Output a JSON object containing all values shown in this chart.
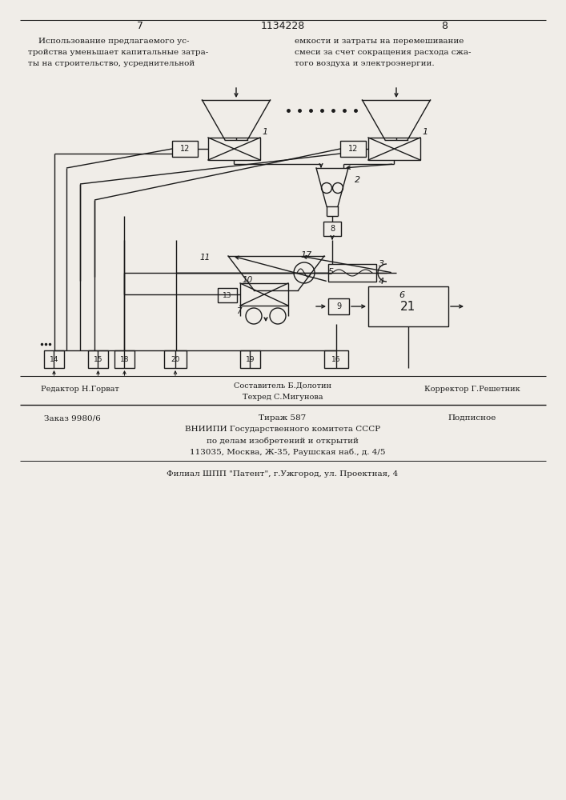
{
  "bg_color": "#f0ede8",
  "line_color": "#1a1a1a",
  "page_num_left": "7",
  "page_num_center": "1134228",
  "page_num_right": "8",
  "text_left_lines": [
    "    Использование предлагаемого ус-",
    "тройства уменьшает капитальные затра-",
    "ты на строительство, усреднительной"
  ],
  "text_right_lines": [
    "емкости и затраты на перемешивание",
    "смеси за счет сокращения расхода сжа-",
    "того воздуха и электроэнергии."
  ],
  "bottom_editor": "Редактор Н.Горват",
  "bottom_composer": "Составитель Б.Долотин",
  "bottom_corrector": "Корректор Г.Решетник",
  "bottom_techred": "Техред С.Мигунова",
  "bottom_zakaz": "Заказ 9980/6",
  "bottom_tirazh": "Тираж 587",
  "bottom_podp": "Подписное",
  "bottom_vniip1": "ВНИИПИ Государственного комитета СССР",
  "bottom_vniip2": "по делам изобретений и открытий",
  "bottom_addr": "    113035, Москва, Ж-35, Раушская наб., д. 4/5",
  "bottom_filial": "Филиал ШПП \"Патент\", г.Ужгород, ул. Проектная, 4"
}
